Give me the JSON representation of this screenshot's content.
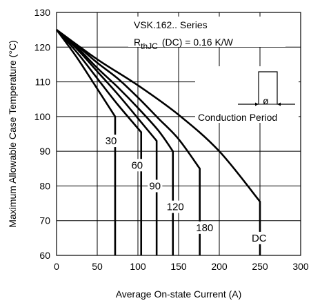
{
  "chart_data": {
    "type": "line",
    "xlabel": "Average On-state Current (A)",
    "ylabel": "Maximum Allowable Case Temperature (°C)",
    "xlim": [
      0,
      300
    ],
    "ylim": [
      60,
      130
    ],
    "x_ticks": [
      0,
      50,
      100,
      150,
      200,
      250,
      300
    ],
    "y_ticks": [
      60,
      70,
      80,
      90,
      100,
      110,
      120,
      130
    ],
    "grid": true,
    "annotation": {
      "series_title": "VSK.162.. Series",
      "rthjc_symbol": "R",
      "rthjc_subscript": "thJC",
      "rthjc_rest": "(DC) = 0.16 K/W",
      "conduction_label": "Conduction Period",
      "phi_label": "ø"
    },
    "series": [
      {
        "name": "30",
        "x": [
          0,
          25,
          50,
          72,
          72
        ],
        "y": [
          125,
          117,
          108,
          100,
          60
        ]
      },
      {
        "name": "60",
        "x": [
          0,
          25,
          50,
          75,
          104,
          104
        ],
        "y": [
          125,
          118.5,
          111,
          103.5,
          95.5,
          60
        ]
      },
      {
        "name": "90",
        "x": [
          0,
          25,
          50,
          75,
          100,
          123,
          123
        ],
        "y": [
          125,
          119.5,
          113,
          106.5,
          99.5,
          93,
          60
        ]
      },
      {
        "name": "120",
        "x": [
          0,
          25,
          50,
          75,
          100,
          125,
          143,
          143
        ],
        "y": [
          125,
          120,
          114,
          108.5,
          102.5,
          96,
          90,
          60
        ]
      },
      {
        "name": "180",
        "x": [
          0,
          25,
          50,
          75,
          100,
          125,
          150,
          176,
          176
        ],
        "y": [
          125,
          120.5,
          115.5,
          111,
          105.5,
          99.5,
          93.5,
          85,
          60
        ]
      },
      {
        "name": "DC",
        "x": [
          0,
          50,
          100,
          150,
          200,
          250,
          250
        ],
        "y": [
          125,
          116.5,
          109,
          100.5,
          90,
          75.5,
          60
        ]
      }
    ],
    "labels": [
      {
        "text": "30",
        "x": 67,
        "y": 92
      },
      {
        "text": "60",
        "x": 99,
        "y": 85
      },
      {
        "text": "90",
        "x": 121,
        "y": 79
      },
      {
        "text": "120",
        "x": 146,
        "y": 73
      },
      {
        "text": "180",
        "x": 182,
        "y": 67
      },
      {
        "text": "DC",
        "x": 249,
        "y": 64
      }
    ]
  }
}
